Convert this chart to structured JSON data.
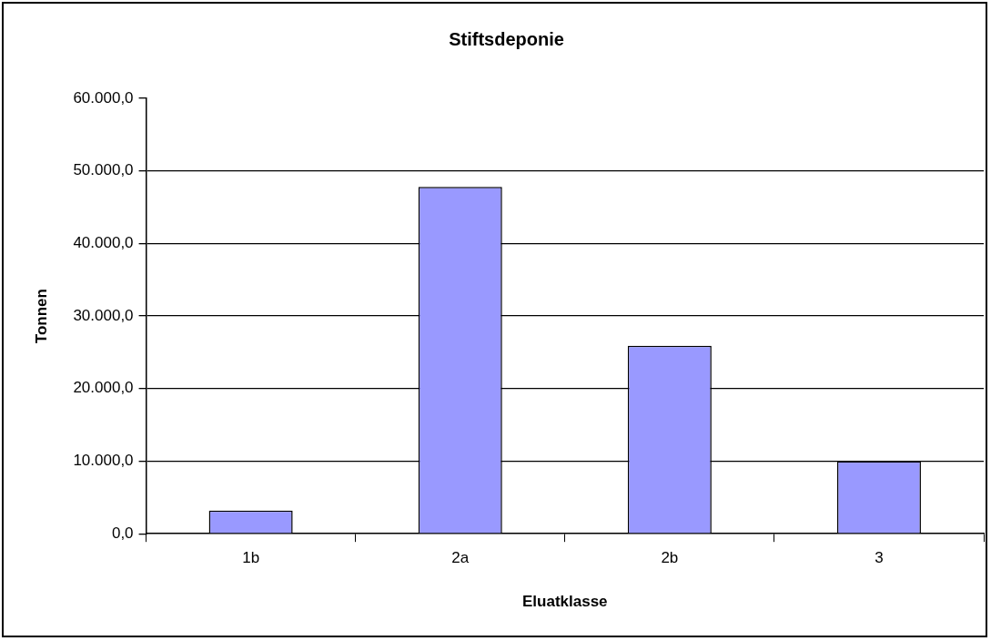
{
  "chart_data": {
    "type": "bar",
    "title": "Stiftsdeponie",
    "xlabel": "Eluatklasse",
    "ylabel": "Tonnen",
    "categories": [
      "1b",
      "2a",
      "2b",
      "3"
    ],
    "values": [
      3200,
      47800,
      25900,
      10000
    ],
    "color": "#9999ff",
    "ylim": [
      0,
      60000
    ],
    "yticks": [
      {
        "value": 0,
        "label": "0,0"
      },
      {
        "value": 10000,
        "label": "10.000,0"
      },
      {
        "value": 20000,
        "label": "20.000,0"
      },
      {
        "value": 30000,
        "label": "30.000,0"
      },
      {
        "value": 40000,
        "label": "40.000,0"
      },
      {
        "value": 50000,
        "label": "50.000,0"
      },
      {
        "value": 60000,
        "label": "60.000,0"
      }
    ],
    "grid": "y",
    "legend": false
  }
}
